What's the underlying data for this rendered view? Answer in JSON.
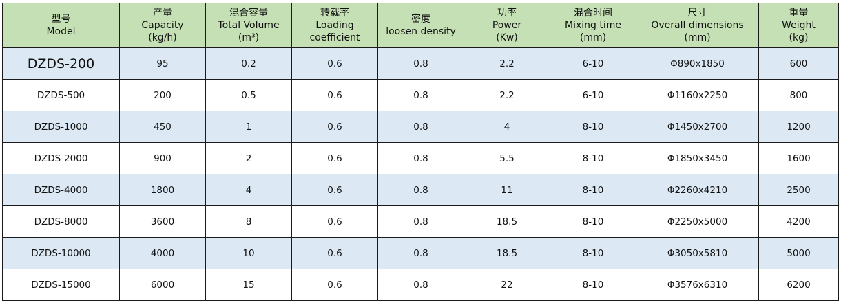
{
  "table": {
    "headers": [
      {
        "zh": "型号",
        "en": "Model",
        "unit": ""
      },
      {
        "zh": "产量",
        "en": "Capacity",
        "unit": "(kg/h)"
      },
      {
        "zh": "混合容量",
        "en": "Total Volume",
        "unit": "(m³)"
      },
      {
        "zh": "转载率",
        "en": "Loading",
        "unit": "coefficient"
      },
      {
        "zh": "密度",
        "en": "loosen density",
        "unit": ""
      },
      {
        "zh": "功率",
        "en": "Power",
        "unit": "(Kw)"
      },
      {
        "zh": "混合时间",
        "en": "Mixing time",
        "unit": "(mm)"
      },
      {
        "zh": "尺寸",
        "en": "Overall dimensions",
        "unit": "(mm)"
      },
      {
        "zh": "重量",
        "en": "Weight",
        "unit": "(kg)"
      }
    ],
    "rows": [
      [
        "DZDS-200",
        "95",
        "0.2",
        "0.6",
        "0.8",
        "2.2",
        "6-10",
        "Φ890x1850",
        "600"
      ],
      [
        "DZDS-500",
        "200",
        "0.5",
        "0.6",
        "0.8",
        "2.2",
        "6-10",
        "Φ1160x2250",
        "800"
      ],
      [
        "DZDS-1000",
        "450",
        "1",
        "0.6",
        "0.8",
        "4",
        "8-10",
        "Φ1450x2700",
        "1200"
      ],
      [
        "DZDS-2000",
        "900",
        "2",
        "0.6",
        "0.8",
        "5.5",
        "8-10",
        "Φ1850x3450",
        "1600"
      ],
      [
        "DZDS-4000",
        "1800",
        "4",
        "0.6",
        "0.8",
        "11",
        "8-10",
        "Φ2260x4210",
        "2500"
      ],
      [
        "DZDS-8000",
        "3600",
        "8",
        "0.6",
        "0.8",
        "18.5",
        "8-10",
        "Φ2250x5000",
        "4200"
      ],
      [
        "DZDS-10000",
        "4000",
        "10",
        "0.6",
        "0.8",
        "18.5",
        "8-10",
        "Φ3050x5810",
        "5000"
      ],
      [
        "DZDS-15000",
        "6000",
        "15",
        "0.6",
        "0.8",
        "22",
        "8-10",
        "Φ3576x6310",
        "6200"
      ]
    ]
  },
  "colors": {
    "header_bg": "#c5e0b4",
    "band_bg": "#dce9f5",
    "plain_bg": "#ffffff",
    "border": "#1a1a1a"
  }
}
